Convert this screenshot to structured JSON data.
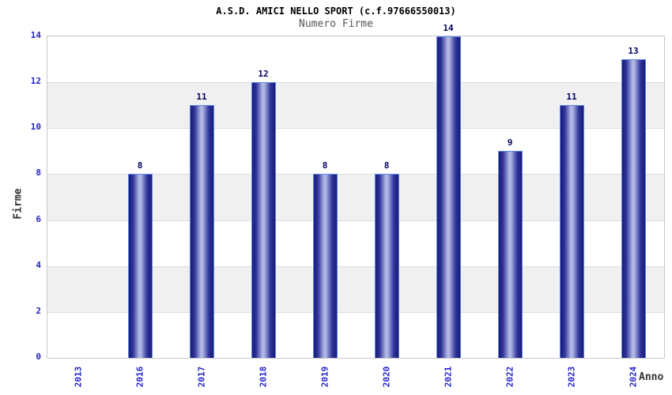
{
  "title": "A.S.D. AMICI NELLO SPORT (c.f.97666550013)",
  "subtitle": "Numero Firme",
  "ylabel": "Firme",
  "xlabel": "Anno",
  "chart_data": {
    "type": "bar",
    "title": "A.S.D. AMICI NELLO SPORT (c.f.97666550013)",
    "subtitle": "Numero Firme",
    "xlabel": "Anno",
    "ylabel": "Firme",
    "categories": [
      "2013",
      "2016",
      "2017",
      "2018",
      "2019",
      "2020",
      "2021",
      "2022",
      "2023",
      "2024"
    ],
    "values": [
      0,
      8,
      11,
      12,
      8,
      8,
      14,
      9,
      11,
      13
    ],
    "ylim": [
      0,
      14
    ],
    "yticks": [
      0,
      2,
      4,
      6,
      8,
      10,
      12,
      14
    ],
    "grid": "alternating horizontal bands every 2 units",
    "legend": "none",
    "value_labels_shown": true
  },
  "colors": {
    "tick_label": "#2323cc",
    "value_label": "#000060",
    "bar_edge": "#1b1b77",
    "bar_mid": "#2f349a",
    "bar_highlight": "#b2b8e4",
    "bar_border": "#5b87e8",
    "band_gray": "#f0f0f0",
    "band_white": "#ffffff",
    "plot_border": "#c9c9c9",
    "gridline": "#dddddd",
    "title_color": "#000000",
    "subtitle_color": "#555555",
    "axis_title_color": "#333333"
  }
}
